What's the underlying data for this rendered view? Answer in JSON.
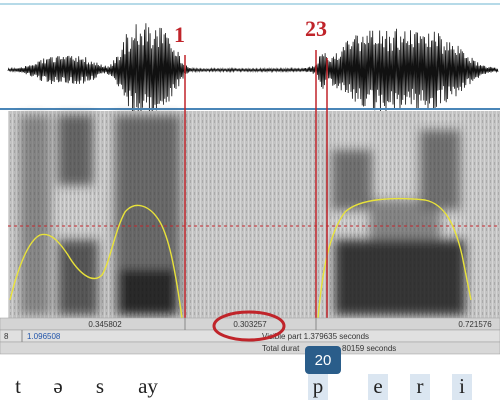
{
  "markers": [
    "1",
    "23"
  ],
  "time_labels": {
    "left": "0.345802",
    "cursor": "0.303257",
    "right": "0.721576"
  },
  "info_row": {
    "left": "8",
    "start": "1.096508",
    "visible": "Visible part 1.379635 seconds"
  },
  "total_row": [
    "Total durat",
    "80159 seconds"
  ],
  "badge": "20",
  "transcription": [
    "t",
    "ə",
    "s",
    "ay",
    "p",
    "e",
    "r",
    "i"
  ]
}
